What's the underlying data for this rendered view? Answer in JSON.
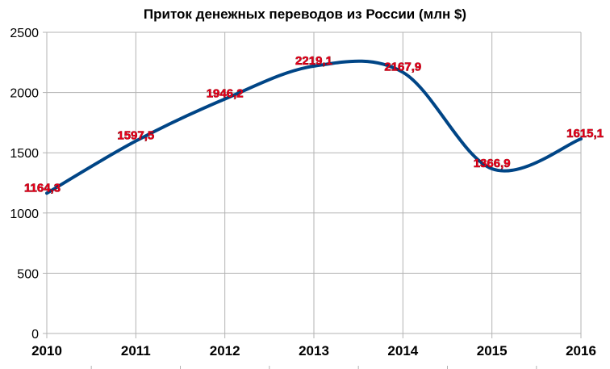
{
  "chart_data": {
    "type": "line",
    "title": "Приток денежных переводов из России (млн $)",
    "xlabel": "",
    "ylabel": "",
    "categories": [
      "2010",
      "2011",
      "2012",
      "2013",
      "2014",
      "2015",
      "2016"
    ],
    "series": [
      {
        "values": [
          1164.3,
          1597.5,
          1946.2,
          2219.1,
          2167.9,
          1366.9,
          1615.1
        ],
        "labels": [
          "1164,3",
          "1597,5",
          "1946,2",
          "2219,1",
          "2167,9",
          "1366,9",
          "1615,1"
        ],
        "color": "#004586",
        "smooth": true
      }
    ],
    "ylim": [
      0,
      2500
    ],
    "yticks": [
      0,
      500,
      1000,
      1500,
      2000,
      2500
    ],
    "grid": true,
    "legend": "none",
    "colors": {
      "line": "#004586",
      "label_fill": "#e8001c",
      "gridline": "#b3b3b3"
    }
  }
}
